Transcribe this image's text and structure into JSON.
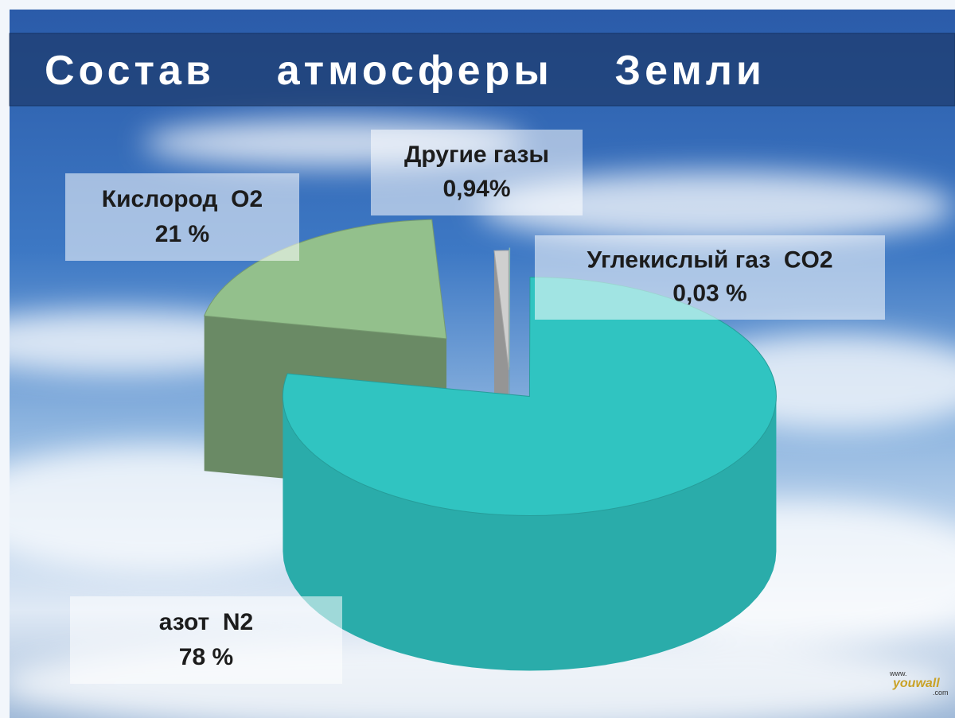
{
  "chart_data": {
    "type": "pie3d",
    "title": "Состав    атмосферы    Земли",
    "categories": [
      "Углекислый газ  CO2",
      "азот  N2",
      "Кислород  O2",
      "Другие газы"
    ],
    "values": [
      0.03,
      78,
      21,
      0.94
    ],
    "value_labels": [
      "0,03 %",
      "78 %",
      "21 %",
      "0,94%"
    ],
    "colors": [
      "#a6e3df",
      "#30c4c1",
      "#93c08c",
      "#cfcfcf"
    ],
    "watermark": {
      "prefix": "www.",
      "name": "youwall",
      "suffix": ".com"
    }
  }
}
